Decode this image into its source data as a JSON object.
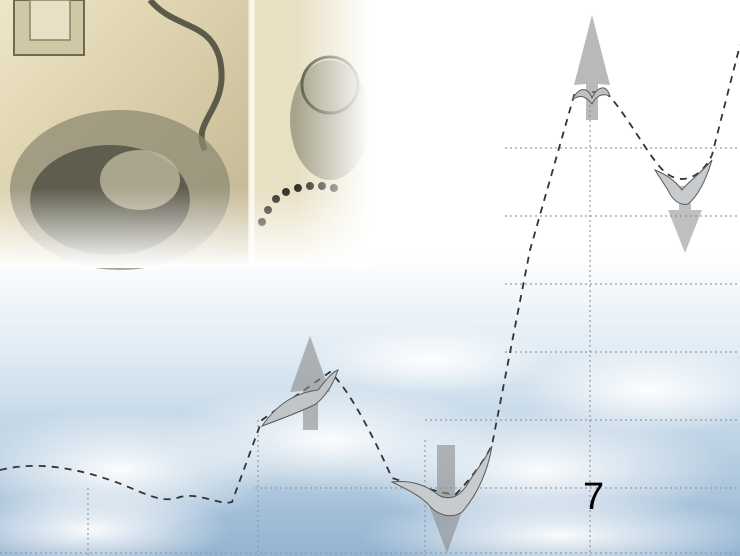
{
  "slide": {
    "page_number": "7"
  },
  "decor": {
    "sky_colors": [
      "#ffffff",
      "#dfeaf3",
      "#b8cfe2",
      "#8fb0cf"
    ],
    "line_color": "#333333",
    "grid_color": "#9a9a9a",
    "arrow_color": "#8a8a8a",
    "bird_color": "#bfc2c4",
    "banknote_colors": [
      "#f4ecd2",
      "#d9cfae",
      "#6f6a55",
      "#3c3a30"
    ],
    "icons": [
      "banknote-image",
      "up-arrow-icon",
      "down-arrow-icon",
      "bird-icon"
    ]
  }
}
